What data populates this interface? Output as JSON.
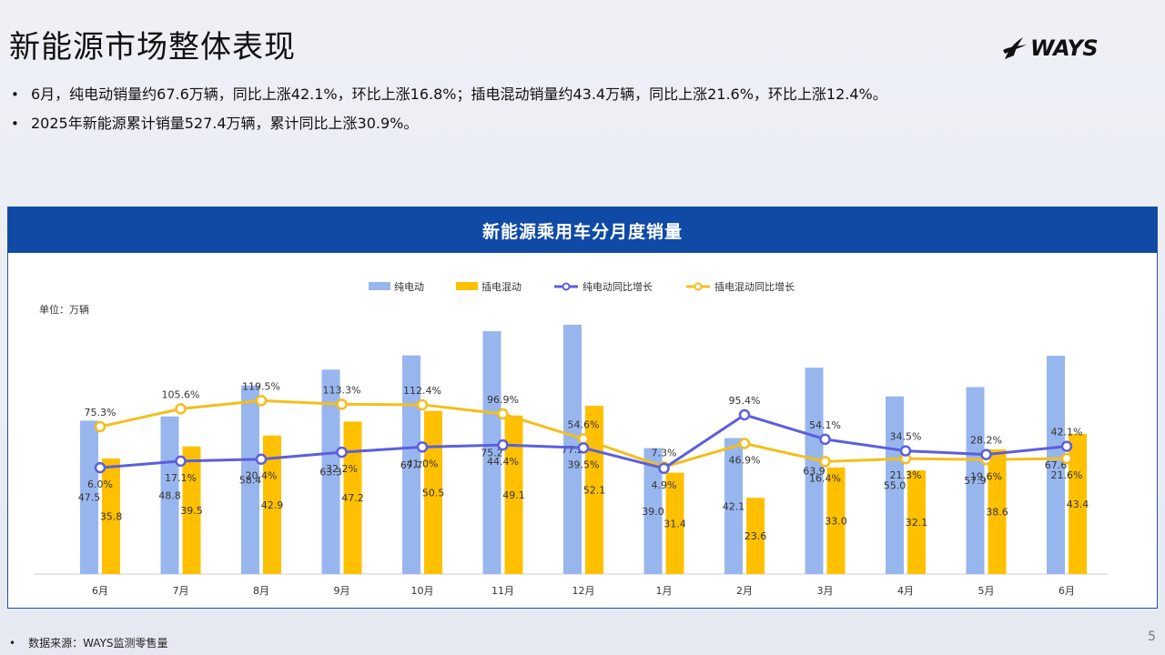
{
  "slide": {
    "title": "新能源市场整体表现",
    "logo_text": "WAYS",
    "bullets": [
      "6月，纯电动销量约67.6万辆，同比上涨42.1%，环比上涨16.8%；插电混动销量约43.4万辆，同比上涨21.6%，环比上涨12.4%。",
      "2025年新能源累计销量527.4万辆，累计同比上涨30.9%。"
    ],
    "footnote": "数据来源：WAYS监测零售量",
    "page_number": "5"
  },
  "chart_data": {
    "type": "bar",
    "title": "新能源乘用车分月度销量",
    "unit_label": "单位：万辆",
    "categories": [
      "6月",
      "7月",
      "8月",
      "9月",
      "10月",
      "11月",
      "12月",
      "1月",
      "2月",
      "3月",
      "4月",
      "5月",
      "6月"
    ],
    "series": [
      {
        "name": "纯电动",
        "type": "bar",
        "color": "#98b6ee",
        "values": [
          47.5,
          48.8,
          58.4,
          63.3,
          67.7,
          75.2,
          77.2,
          39.0,
          42.1,
          63.9,
          55.0,
          57.9,
          67.6
        ]
      },
      {
        "name": "插电混动",
        "type": "bar",
        "color": "#ffc000",
        "values": [
          35.8,
          39.5,
          42.9,
          47.2,
          50.5,
          49.1,
          52.1,
          31.4,
          23.6,
          33.0,
          32.1,
          38.6,
          43.4
        ]
      },
      {
        "name": "纯电动同比增长",
        "type": "line",
        "color": "#5b5fdc",
        "unit": "%",
        "values": [
          6.0,
          17.1,
          20.4,
          32.2,
          41.0,
          44.4,
          39.5,
          4.9,
          95.4,
          54.1,
          34.5,
          28.2,
          42.1
        ],
        "labels": [
          "6.0%",
          "17.1%",
          "20.4%",
          "32.2%",
          "41.0%",
          "44.4%",
          "39.5%",
          "4.9%",
          "95.4%",
          "54.1%",
          "34.5%",
          "28.2%",
          "42.1%"
        ]
      },
      {
        "name": "插电混动同比增长",
        "type": "line",
        "color": "#f4be1c",
        "unit": "%",
        "values": [
          75.3,
          105.6,
          119.5,
          113.3,
          112.4,
          96.9,
          54.6,
          7.3,
          46.9,
          16.4,
          21.3,
          19.6,
          21.6
        ],
        "labels": [
          "75.3%",
          "105.6%",
          "119.5%",
          "113.3%",
          "112.4%",
          "96.9%",
          "54.6%",
          "7.3%",
          "46.9%",
          "16.4%",
          "21.3%",
          "19.6%",
          "21.6%"
        ]
      }
    ],
    "legend_position": "top-center",
    "grid": false
  }
}
